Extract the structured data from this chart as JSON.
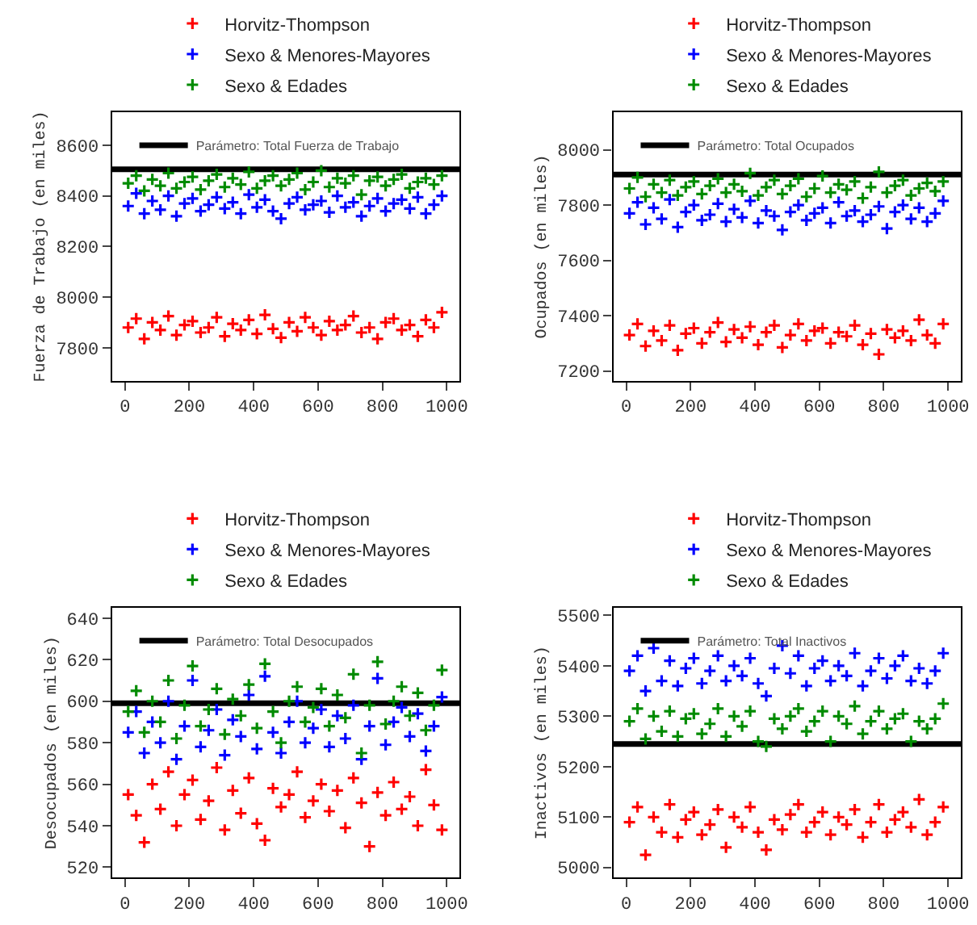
{
  "chart_data": [
    {
      "type": "scatter",
      "ylabel": "Fuerza de Trabajo (en miles)",
      "marker": "cross",
      "legend": "top",
      "x": [
        10,
        35,
        60,
        85,
        110,
        135,
        160,
        185,
        210,
        235,
        260,
        285,
        310,
        335,
        360,
        385,
        410,
        435,
        460,
        485,
        510,
        535,
        560,
        585,
        610,
        635,
        660,
        685,
        710,
        735,
        760,
        785,
        810,
        835,
        860,
        885,
        910,
        935,
        960,
        985
      ],
      "xlim": [
        -40,
        1040
      ],
      "xticks": [
        0,
        200,
        400,
        600,
        800,
        1000
      ],
      "ylim": [
        7670,
        8730
      ],
      "yticks": [
        7800,
        8000,
        8200,
        8400,
        8600
      ],
      "ref_lines": [
        {
          "axis": "y",
          "value": 8505,
          "label": "Parámetro: Total Fuerza de Trabajo",
          "color": "#000000"
        }
      ],
      "series": [
        {
          "name": "Horvitz-Thompson",
          "color": "#ff0000",
          "values": [
            7880,
            7915,
            7835,
            7900,
            7870,
            7925,
            7850,
            7890,
            7905,
            7860,
            7880,
            7920,
            7845,
            7895,
            7870,
            7910,
            7855,
            7930,
            7875,
            7840,
            7900,
            7865,
            7920,
            7880,
            7850,
            7905,
            7870,
            7890,
            7925,
            7860,
            7880,
            7835,
            7900,
            7915,
            7870,
            7890,
            7845,
            7910,
            7880,
            7940
          ]
        },
        {
          "name": "Sexo & Menores-Mayores",
          "color": "#0000ff",
          "values": [
            8360,
            8410,
            8330,
            8380,
            8345,
            8400,
            8320,
            8370,
            8390,
            8340,
            8365,
            8395,
            8350,
            8375,
            8330,
            8405,
            8355,
            8385,
            8340,
            8310,
            8370,
            8395,
            8345,
            8365,
            8380,
            8335,
            8400,
            8355,
            8375,
            8320,
            8360,
            8390,
            8340,
            8370,
            8385,
            8350,
            8395,
            8330,
            8365,
            8400
          ]
        },
        {
          "name": "Sexo & Edades",
          "color": "#008b00",
          "values": [
            8450,
            8480,
            8420,
            8465,
            8440,
            8490,
            8430,
            8455,
            8475,
            8425,
            8460,
            8485,
            8435,
            8470,
            8445,
            8495,
            8430,
            8460,
            8480,
            8440,
            8465,
            8490,
            8425,
            8455,
            8500,
            8435,
            8470,
            8450,
            8480,
            8405,
            8460,
            8475,
            8440,
            8465,
            8485,
            8430,
            8455,
            8470,
            8445,
            8480
          ]
        }
      ]
    },
    {
      "type": "scatter",
      "ylabel": "Ocupados (en miles)",
      "marker": "cross",
      "legend": "top",
      "x": [
        10,
        35,
        60,
        85,
        110,
        135,
        160,
        185,
        210,
        235,
        260,
        285,
        310,
        335,
        360,
        385,
        410,
        435,
        460,
        485,
        510,
        535,
        560,
        585,
        610,
        635,
        660,
        685,
        710,
        735,
        760,
        785,
        810,
        835,
        860,
        885,
        910,
        935,
        960,
        985
      ],
      "xlim": [
        -40,
        1040
      ],
      "xticks": [
        0,
        200,
        400,
        600,
        800,
        1000
      ],
      "ylim": [
        7165,
        8135
      ],
      "yticks": [
        7200,
        7400,
        7600,
        7800,
        8000
      ],
      "ref_lines": [
        {
          "axis": "y",
          "value": 7910,
          "label": "Parámetro: Total Ocupados",
          "color": "#000000"
        }
      ],
      "series": [
        {
          "name": "Horvitz-Thompson",
          "color": "#ff0000",
          "values": [
            7330,
            7370,
            7290,
            7345,
            7310,
            7365,
            7275,
            7335,
            7355,
            7300,
            7340,
            7375,
            7305,
            7350,
            7320,
            7360,
            7295,
            7340,
            7365,
            7285,
            7330,
            7370,
            7310,
            7345,
            7355,
            7300,
            7340,
            7325,
            7365,
            7295,
            7335,
            7260,
            7350,
            7320,
            7345,
            7310,
            7385,
            7330,
            7300,
            7370
          ]
        },
        {
          "name": "Sexo & Menores-Mayores",
          "color": "#0000ff",
          "values": [
            7770,
            7810,
            7730,
            7790,
            7750,
            7820,
            7720,
            7775,
            7800,
            7745,
            7765,
            7805,
            7740,
            7785,
            7755,
            7815,
            7735,
            7780,
            7760,
            7710,
            7775,
            7800,
            7745,
            7770,
            7790,
            7735,
            7810,
            7760,
            7780,
            7740,
            7765,
            7795,
            7715,
            7775,
            7800,
            7750,
            7790,
            7740,
            7770,
            7815
          ]
        },
        {
          "name": "Sexo & Edades",
          "color": "#008b00",
          "values": [
            7860,
            7900,
            7830,
            7875,
            7845,
            7890,
            7835,
            7865,
            7885,
            7840,
            7870,
            7895,
            7845,
            7875,
            7850,
            7915,
            7835,
            7865,
            7890,
            7840,
            7870,
            7895,
            7830,
            7860,
            7905,
            7845,
            7875,
            7855,
            7885,
            7825,
            7865,
            7920,
            7845,
            7870,
            7890,
            7835,
            7860,
            7880,
            7850,
            7885
          ]
        }
      ]
    },
    {
      "type": "scatter",
      "ylabel": "Desocupados (en miles)",
      "marker": "cross",
      "legend": "top",
      "x": [
        10,
        35,
        60,
        85,
        110,
        135,
        160,
        185,
        210,
        235,
        260,
        285,
        310,
        335,
        360,
        385,
        410,
        435,
        460,
        485,
        510,
        535,
        560,
        585,
        610,
        635,
        660,
        685,
        710,
        735,
        760,
        785,
        810,
        835,
        860,
        885,
        910,
        935,
        960,
        985
      ],
      "xlim": [
        -40,
        1040
      ],
      "xticks": [
        0,
        200,
        400,
        600,
        800,
        1000
      ],
      "ylim": [
        515,
        645
      ],
      "yticks": [
        520,
        540,
        560,
        580,
        600,
        620,
        640
      ],
      "ref_lines": [
        {
          "axis": "y",
          "value": 599,
          "label": "Parámetro: Total Desocupados",
          "color": "#000000"
        }
      ],
      "series": [
        {
          "name": "Horvitz-Thompson",
          "color": "#ff0000",
          "values": [
            555,
            545,
            532,
            560,
            548,
            566,
            540,
            555,
            562,
            543,
            552,
            568,
            538,
            557,
            546,
            563,
            541,
            533,
            558,
            549,
            555,
            566,
            544,
            552,
            560,
            547,
            557,
            539,
            563,
            551,
            530,
            556,
            545,
            561,
            548,
            554,
            540,
            567,
            550,
            538
          ]
        },
        {
          "name": "Sexo & Menores-Mayores",
          "color": "#0000ff",
          "values": [
            585,
            595,
            575,
            590,
            580,
            600,
            572,
            588,
            610,
            578,
            586,
            596,
            574,
            591,
            583,
            603,
            577,
            612,
            585,
            575,
            590,
            600,
            580,
            587,
            596,
            578,
            593,
            582,
            598,
            572,
            588,
            611,
            579,
            590,
            597,
            583,
            594,
            576,
            588,
            602
          ]
        },
        {
          "name": "Sexo & Edades",
          "color": "#008b00",
          "values": [
            595,
            605,
            585,
            600,
            590,
            610,
            582,
            598,
            617,
            588,
            596,
            606,
            584,
            601,
            593,
            608,
            587,
            618,
            595,
            580,
            600,
            607,
            590,
            597,
            606,
            588,
            603,
            592,
            613,
            575,
            598,
            619,
            589,
            600,
            607,
            593,
            604,
            586,
            598,
            615
          ]
        }
      ]
    },
    {
      "type": "scatter",
      "ylabel": "Inactivos (en miles)",
      "marker": "cross",
      "legend": "top",
      "x": [
        10,
        35,
        60,
        85,
        110,
        135,
        160,
        185,
        210,
        235,
        260,
        285,
        310,
        335,
        360,
        385,
        410,
        435,
        460,
        485,
        510,
        535,
        560,
        585,
        610,
        635,
        660,
        685,
        710,
        735,
        760,
        785,
        810,
        835,
        860,
        885,
        910,
        935,
        960,
        985
      ],
      "xlim": [
        -40,
        1040
      ],
      "xticks": [
        0,
        200,
        400,
        600,
        800,
        1000
      ],
      "ylim": [
        4980,
        5515
      ],
      "yticks": [
        5000,
        5100,
        5200,
        5300,
        5400,
        5500
      ],
      "ref_lines": [
        {
          "axis": "y",
          "value": 5245,
          "label": "Parámetro: Total Inactivos",
          "color": "#000000"
        }
      ],
      "series": [
        {
          "name": "Horvitz-Thompson",
          "color": "#ff0000",
          "values": [
            5090,
            5120,
            5025,
            5100,
            5070,
            5125,
            5060,
            5095,
            5110,
            5065,
            5085,
            5115,
            5040,
            5100,
            5080,
            5120,
            5070,
            5035,
            5095,
            5075,
            5105,
            5125,
            5070,
            5090,
            5110,
            5065,
            5100,
            5085,
            5115,
            5060,
            5090,
            5125,
            5070,
            5095,
            5110,
            5080,
            5135,
            5065,
            5090,
            5120
          ]
        },
        {
          "name": "Sexo & Menores-Mayores",
          "color": "#0000ff",
          "values": [
            5390,
            5420,
            5350,
            5435,
            5370,
            5410,
            5360,
            5395,
            5415,
            5365,
            5390,
            5420,
            5370,
            5400,
            5380,
            5415,
            5365,
            5340,
            5395,
            5440,
            5385,
            5420,
            5360,
            5395,
            5410,
            5370,
            5400,
            5380,
            5425,
            5360,
            5390,
            5415,
            5375,
            5400,
            5420,
            5370,
            5395,
            5365,
            5390,
            5425
          ]
        },
        {
          "name": "Sexo & Edades",
          "color": "#008b00",
          "values": [
            5290,
            5315,
            5255,
            5300,
            5270,
            5310,
            5260,
            5295,
            5305,
            5265,
            5285,
            5315,
            5260,
            5300,
            5280,
            5310,
            5250,
            5240,
            5295,
            5275,
            5300,
            5315,
            5270,
            5290,
            5310,
            5250,
            5300,
            5285,
            5320,
            5265,
            5290,
            5310,
            5275,
            5295,
            5305,
            5250,
            5290,
            5275,
            5295,
            5325
          ]
        }
      ]
    }
  ]
}
